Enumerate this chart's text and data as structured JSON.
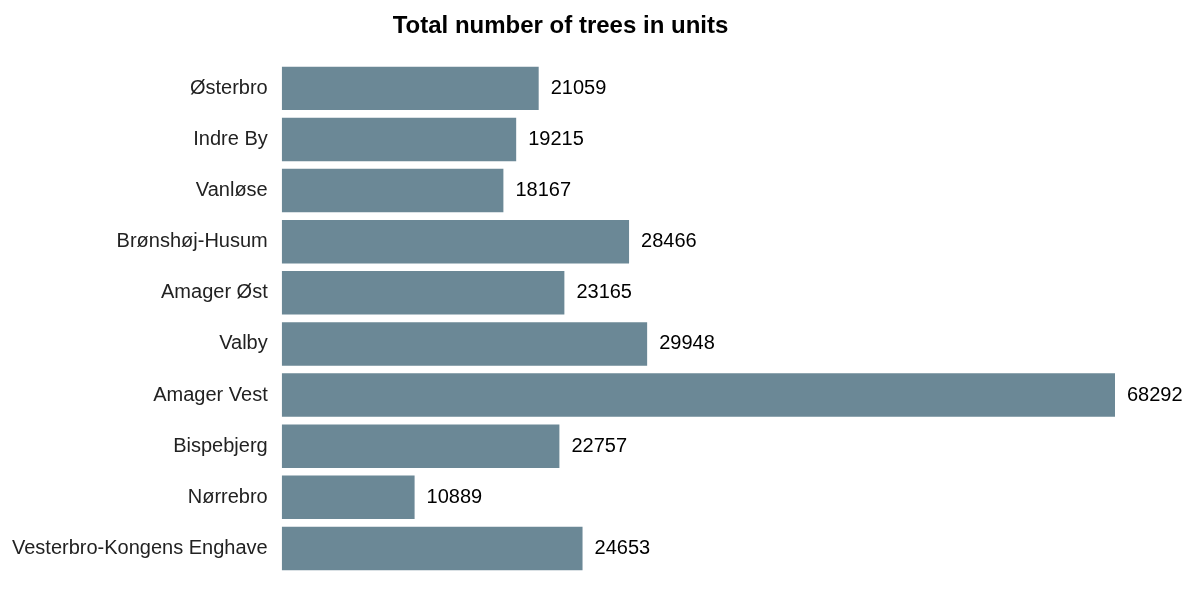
{
  "chart_data": {
    "type": "bar",
    "orientation": "horizontal",
    "title": "Total number of trees in units",
    "categories": [
      "Østerbro",
      "Indre By",
      "Vanløse",
      "Brønshøj-Husum",
      "Amager Øst",
      "Valby",
      "Amager Vest",
      "Bispebjerg",
      "Nørrebro",
      "Vesterbro-Kongens Enghave"
    ],
    "values": [
      21059,
      19215,
      18167,
      28466,
      23165,
      29948,
      68292,
      22757,
      10889,
      24653
    ],
    "color": "#6b8896",
    "data_labels": true,
    "tick_labels": "y"
  }
}
